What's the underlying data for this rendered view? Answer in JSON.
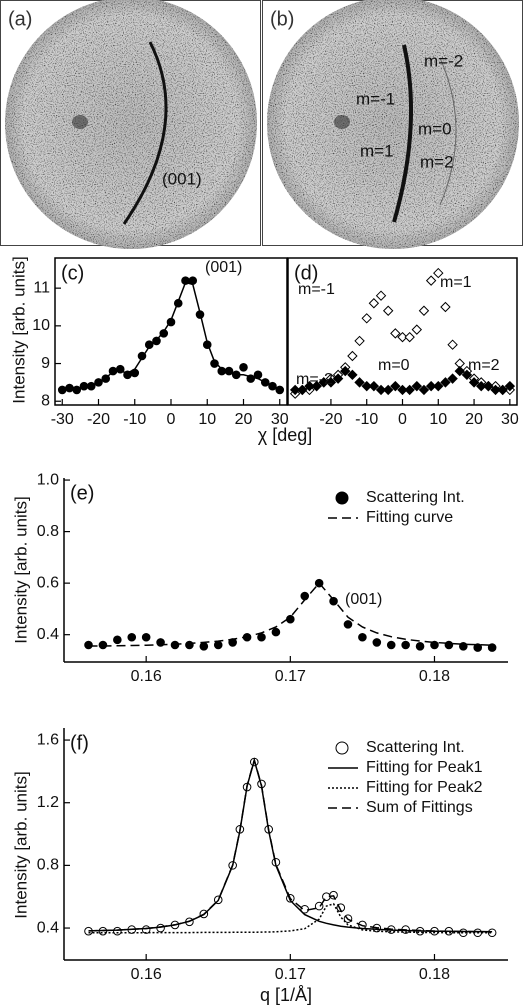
{
  "images": [
    {
      "label": "(a)",
      "annotations": [
        "(001)"
      ]
    },
    {
      "label": "(b)",
      "annotations": [
        "m=-1",
        "m=-2",
        "m=0",
        "m=1",
        "m=2"
      ]
    }
  ],
  "chart_data": [
    {
      "type": "scatter",
      "label": "(c)",
      "ylabel": "Intensity [arb. units]",
      "xlabel": "χ [deg]",
      "frame": true,
      "annotations": [
        "(001)"
      ],
      "xlim": [
        -32,
        32
      ],
      "ylim": [
        7.9,
        11.8
      ],
      "xticks": [
        -30,
        -20,
        -10,
        0,
        10,
        20,
        30
      ],
      "yticks": [
        8,
        9,
        10,
        11
      ],
      "x": [
        -30,
        -28,
        -26,
        -24,
        -22,
        -20,
        -18,
        -16,
        -14,
        -12,
        -10,
        -8,
        -6,
        -4,
        -2,
        0,
        2,
        4,
        6,
        8,
        10,
        12,
        14,
        16,
        18,
        20,
        22,
        24,
        26,
        28,
        30
      ],
      "series": [
        {
          "color": "#000000",
          "style": "points",
          "marker": "circle",
          "filled": true,
          "values": [
            8.3,
            8.35,
            8.3,
            8.4,
            8.4,
            8.5,
            8.6,
            8.8,
            8.85,
            8.7,
            8.75,
            9.2,
            9.5,
            9.6,
            9.8,
            10.1,
            10.6,
            11.2,
            11.2,
            10.3,
            9.5,
            9.0,
            8.8,
            8.8,
            8.7,
            8.9,
            8.6,
            8.7,
            8.5,
            8.4,
            8.3
          ]
        },
        {
          "color": "#000000",
          "style": "solid",
          "values": [
            8.3,
            8.32,
            8.34,
            8.38,
            8.42,
            8.5,
            8.62,
            8.78,
            8.8,
            8.75,
            8.85,
            9.15,
            9.45,
            9.62,
            9.85,
            10.15,
            10.65,
            11.15,
            11.1,
            10.35,
            9.55,
            9.05,
            8.85,
            8.75,
            8.7,
            8.7,
            8.65,
            8.6,
            8.5,
            8.4,
            8.32
          ]
        }
      ]
    },
    {
      "type": "scatter",
      "label": "(d)",
      "frame": true,
      "annotations": [
        "m=-1",
        "m=1",
        "m=0",
        "m=-2",
        "m=2"
      ],
      "xlim": [
        -32,
        32
      ],
      "ylim": [
        7.9,
        11.8
      ],
      "xticks": [
        -20,
        -10,
        0,
        10,
        20,
        30
      ],
      "x": [
        -30,
        -28,
        -26,
        -24,
        -22,
        -20,
        -18,
        -16,
        -14,
        -12,
        -10,
        -8,
        -6,
        -4,
        -2,
        0,
        2,
        4,
        6,
        8,
        10,
        12,
        14,
        16,
        18,
        20,
        22,
        24,
        26,
        28,
        30
      ],
      "series": [
        {
          "color": "#000000",
          "style": "points",
          "marker": "diamond",
          "filled": false,
          "values": [
            8.2,
            8.3,
            8.3,
            8.4,
            8.5,
            8.6,
            8.7,
            8.9,
            9.2,
            9.6,
            10.2,
            10.6,
            10.8,
            10.4,
            9.8,
            9.7,
            9.7,
            9.9,
            10.4,
            11.2,
            11.4,
            10.5,
            9.5,
            9.0,
            8.8,
            8.6,
            8.5,
            8.4,
            8.4,
            8.3,
            8.3
          ]
        },
        {
          "color": "#000000",
          "style": "points",
          "marker": "diamond",
          "filled": true,
          "values": [
            8.3,
            8.3,
            8.4,
            8.4,
            8.5,
            8.5,
            8.6,
            8.8,
            8.7,
            8.5,
            8.4,
            8.4,
            8.3,
            8.3,
            8.4,
            8.3,
            8.3,
            8.4,
            8.3,
            8.4,
            8.4,
            8.5,
            8.6,
            8.8,
            8.7,
            8.5,
            8.4,
            8.4,
            8.3,
            8.3,
            8.4
          ]
        }
      ]
    },
    {
      "type": "scatter",
      "label": "(e)",
      "ylabel": "Intensity [arb. units]",
      "frame": false,
      "annotations": [
        "(001)"
      ],
      "legend": "upper right",
      "xlim": [
        0.1543,
        0.1851
      ],
      "ylim": [
        0.294,
        1.008
      ],
      "xticks": [
        0.16,
        0.17,
        0.18
      ],
      "yticks": [
        0.4,
        0.6,
        0.8,
        {
          "value": 1,
          "label": "1.0"
        }
      ],
      "x": [
        0.156,
        0.157,
        0.158,
        0.159,
        0.16,
        0.161,
        0.162,
        0.163,
        0.164,
        0.165,
        0.166,
        0.167,
        0.168,
        0.169,
        0.17,
        0.171,
        0.172,
        0.173,
        0.174,
        0.175,
        0.176,
        0.177,
        0.178,
        0.179,
        0.18,
        0.181,
        0.182,
        0.183,
        0.184
      ],
      "series": [
        {
          "name": "Scattering Int.",
          "color": "#000000",
          "style": "points",
          "marker": "circle",
          "filled": true,
          "values": [
            0.36,
            0.36,
            0.38,
            0.39,
            0.39,
            0.37,
            0.36,
            0.36,
            0.355,
            0.36,
            0.37,
            0.39,
            0.39,
            0.41,
            0.46,
            0.55,
            0.6,
            0.53,
            0.44,
            0.39,
            0.37,
            0.36,
            0.36,
            0.355,
            0.36,
            0.36,
            0.355,
            0.35,
            0.35
          ]
        },
        {
          "name": "Fitting curve",
          "color": "#000000",
          "style": "dashed",
          "values": [
            0.356,
            0.356,
            0.357,
            0.358,
            0.359,
            0.361,
            0.363,
            0.366,
            0.37,
            0.375,
            0.382,
            0.392,
            0.407,
            0.43,
            0.468,
            0.535,
            0.6,
            0.535,
            0.468,
            0.43,
            0.407,
            0.392,
            0.382,
            0.375,
            0.37,
            0.366,
            0.363,
            0.361,
            0.359
          ]
        }
      ]
    },
    {
      "type": "scatter",
      "label": "(f)",
      "ylabel": "Intensity [arb. units]",
      "xlabel": "q [1/Å]",
      "frame": false,
      "legend": "upper right",
      "xlim": [
        0.1543,
        0.1851
      ],
      "ylim": [
        0.196,
        1.677
      ],
      "xticks": [
        0.16,
        0.17,
        0.18
      ],
      "yticks": [
        0.4,
        0.8,
        1.2,
        1.6
      ],
      "x": [
        0.156,
        0.157,
        0.158,
        0.159,
        0.16,
        0.161,
        0.162,
        0.163,
        0.164,
        0.165,
        0.166,
        0.1665,
        0.167,
        0.1675,
        0.168,
        0.1685,
        0.169,
        0.17,
        0.171,
        0.172,
        0.1725,
        0.173,
        0.1735,
        0.174,
        0.175,
        0.176,
        0.177,
        0.178,
        0.179,
        0.18,
        0.181,
        0.182,
        0.183,
        0.184
      ],
      "series": [
        {
          "name": "Scattering Int.",
          "color": "#000000",
          "style": "points",
          "marker": "circle",
          "filled": false,
          "values": [
            0.38,
            0.38,
            0.38,
            0.39,
            0.39,
            0.4,
            0.42,
            0.44,
            0.49,
            0.58,
            0.8,
            1.03,
            1.3,
            1.46,
            1.32,
            1.03,
            0.82,
            0.59,
            0.52,
            0.54,
            0.6,
            0.61,
            0.53,
            0.46,
            0.42,
            0.4,
            0.39,
            0.39,
            0.38,
            0.38,
            0.38,
            0.37,
            0.37,
            0.37
          ]
        },
        {
          "name": "Fitting for Peak1",
          "color": "#000000",
          "style": "solid",
          "values": [
            0.382,
            0.384,
            0.387,
            0.392,
            0.397,
            0.406,
            0.42,
            0.443,
            0.486,
            0.576,
            0.8,
            1.02,
            1.307,
            1.47,
            1.307,
            1.02,
            0.8,
            0.576,
            0.486,
            0.443,
            0.43,
            0.42,
            0.412,
            0.406,
            0.397,
            0.392,
            0.387,
            0.384,
            0.382,
            0.38,
            0.379,
            0.378,
            0.377,
            0.376
          ]
        },
        {
          "name": "Fitting for Peak2",
          "color": "#000000",
          "style": "dotted",
          "values": [
            0.37,
            0.37,
            0.37,
            0.37,
            0.37,
            0.371,
            0.371,
            0.371,
            0.372,
            0.372,
            0.373,
            0.373,
            0.373,
            0.373,
            0.374,
            0.375,
            0.376,
            0.382,
            0.396,
            0.457,
            0.54,
            0.555,
            0.47,
            0.42,
            0.388,
            0.38,
            0.376,
            0.374,
            0.372,
            0.371,
            0.37,
            0.37,
            0.37,
            0.37
          ]
        },
        {
          "name": "Sum of Fittings",
          "color": "#000000",
          "style": "dashed",
          "values": [
            0.382,
            0.384,
            0.387,
            0.392,
            0.397,
            0.407,
            0.421,
            0.444,
            0.488,
            0.578,
            0.803,
            1.023,
            1.31,
            1.473,
            1.311,
            1.025,
            0.806,
            0.588,
            0.512,
            0.53,
            0.6,
            0.605,
            0.512,
            0.456,
            0.415,
            0.402,
            0.393,
            0.388,
            0.384,
            0.381,
            0.379,
            0.378,
            0.377,
            0.376
          ]
        }
      ]
    }
  ]
}
